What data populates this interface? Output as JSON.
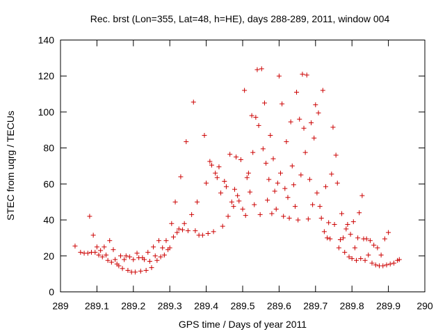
{
  "chart_data": {
    "type": "scatter",
    "title": "Rec. brst (Lon=355, Lat=48, h=HE), days 288-289, 2011, window 004",
    "xlabel": "GPS time / Days of year 2011",
    "ylabel": "STEC from uqrg / TECUs",
    "xlim": [
      289,
      290
    ],
    "ylim": [
      0,
      140
    ],
    "xticks": [
      "289",
      "289.1",
      "289.2",
      "289.3",
      "289.4",
      "289.5",
      "289.6",
      "289.7",
      "289.8",
      "289.9",
      "290"
    ],
    "yticks": [
      "0",
      "20",
      "40",
      "60",
      "80",
      "100",
      "120",
      "140"
    ],
    "marker": "plus",
    "color": "#cc0000",
    "grid": false,
    "legend": "none",
    "points": [
      [
        289.04,
        25.5
      ],
      [
        289.055,
        22.0
      ],
      [
        289.065,
        21.5
      ],
      [
        289.075,
        21.5
      ],
      [
        289.08,
        42.0
      ],
      [
        289.085,
        22.0
      ],
      [
        289.09,
        31.5
      ],
      [
        289.095,
        22.0
      ],
      [
        289.1,
        25.0
      ],
      [
        289.105,
        20.5
      ],
      [
        289.11,
        23.0
      ],
      [
        289.115,
        19.5
      ],
      [
        289.12,
        25.0
      ],
      [
        289.125,
        20.5
      ],
      [
        289.13,
        17.5
      ],
      [
        289.135,
        28.5
      ],
      [
        289.14,
        16.5
      ],
      [
        289.145,
        23.5
      ],
      [
        289.15,
        18.0
      ],
      [
        289.155,
        15.5
      ],
      [
        289.16,
        14.5
      ],
      [
        289.165,
        20.0
      ],
      [
        289.17,
        13.0
      ],
      [
        289.175,
        18.0
      ],
      [
        289.18,
        20.0
      ],
      [
        289.185,
        12.0
      ],
      [
        289.19,
        19.5
      ],
      [
        289.195,
        11.0
      ],
      [
        289.2,
        18.0
      ],
      [
        289.205,
        11.0
      ],
      [
        289.21,
        21.5
      ],
      [
        289.215,
        19.0
      ],
      [
        289.22,
        11.5
      ],
      [
        289.225,
        19.0
      ],
      [
        289.23,
        18.0
      ],
      [
        289.235,
        12.0
      ],
      [
        289.24,
        22.0
      ],
      [
        289.245,
        17.0
      ],
      [
        289.25,
        13.5
      ],
      [
        289.255,
        25.0
      ],
      [
        289.26,
        20.0
      ],
      [
        289.265,
        17.5
      ],
      [
        289.27,
        28.5
      ],
      [
        289.275,
        19.5
      ],
      [
        289.28,
        24.5
      ],
      [
        289.285,
        20.5
      ],
      [
        289.29,
        28.5
      ],
      [
        289.295,
        23.5
      ],
      [
        289.3,
        24.5
      ],
      [
        289.305,
        38.0
      ],
      [
        289.31,
        30.5
      ],
      [
        289.315,
        50.0
      ],
      [
        289.32,
        33.0
      ],
      [
        289.325,
        35.0
      ],
      [
        289.33,
        64.0
      ],
      [
        289.335,
        34.5
      ],
      [
        289.34,
        38.0
      ],
      [
        289.345,
        83.5
      ],
      [
        289.35,
        34.0
      ],
      [
        289.36,
        43.0
      ],
      [
        289.365,
        105.5
      ],
      [
        289.37,
        34.0
      ],
      [
        289.375,
        50.0
      ],
      [
        289.38,
        31.5
      ],
      [
        289.39,
        31.5
      ],
      [
        289.395,
        87.0
      ],
      [
        289.4,
        60.5
      ],
      [
        289.405,
        32.5
      ],
      [
        289.41,
        72.5
      ],
      [
        289.415,
        70.5
      ],
      [
        289.42,
        33.5
      ],
      [
        289.425,
        66.0
      ],
      [
        289.43,
        63.5
      ],
      [
        289.435,
        69.5
      ],
      [
        289.44,
        55.0
      ],
      [
        289.445,
        36.5
      ],
      [
        289.45,
        61.5
      ],
      [
        289.455,
        58.5
      ],
      [
        289.46,
        42.0
      ],
      [
        289.465,
        76.5
      ],
      [
        289.47,
        50.0
      ],
      [
        289.475,
        47.5
      ],
      [
        289.478,
        57.0
      ],
      [
        289.482,
        75.0
      ],
      [
        289.486,
        53.5
      ],
      [
        289.49,
        50.5
      ],
      [
        289.495,
        73.5
      ],
      [
        289.5,
        46.0
      ],
      [
        289.505,
        112.0
      ],
      [
        289.508,
        42.5
      ],
      [
        289.512,
        63.5
      ],
      [
        289.516,
        66.0
      ],
      [
        289.52,
        55.5
      ],
      [
        289.525,
        98.0
      ],
      [
        289.528,
        77.5
      ],
      [
        289.532,
        48.5
      ],
      [
        289.536,
        97.0
      ],
      [
        289.54,
        123.5
      ],
      [
        289.544,
        92.5
      ],
      [
        289.548,
        43.0
      ],
      [
        289.552,
        124.0
      ],
      [
        289.556,
        79.5
      ],
      [
        289.56,
        105.0
      ],
      [
        289.564,
        71.5
      ],
      [
        289.568,
        51.0
      ],
      [
        289.572,
        62.5
      ],
      [
        289.576,
        87.0
      ],
      [
        289.58,
        43.5
      ],
      [
        289.584,
        74.0
      ],
      [
        289.588,
        56.0
      ],
      [
        289.592,
        46.0
      ],
      [
        289.596,
        60.5
      ],
      [
        289.6,
        120.0
      ],
      [
        289.604,
        66.0
      ],
      [
        289.608,
        104.5
      ],
      [
        289.612,
        42.0
      ],
      [
        289.616,
        57.5
      ],
      [
        289.62,
        83.5
      ],
      [
        289.624,
        52.5
      ],
      [
        289.628,
        41.0
      ],
      [
        289.632,
        94.5
      ],
      [
        289.636,
        70.0
      ],
      [
        289.64,
        59.5
      ],
      [
        289.644,
        47.5
      ],
      [
        289.648,
        111.0
      ],
      [
        289.652,
        40.0
      ],
      [
        289.656,
        96.0
      ],
      [
        289.66,
        65.0
      ],
      [
        289.664,
        121.0
      ],
      [
        289.668,
        91.0
      ],
      [
        289.672,
        77.5
      ],
      [
        289.676,
        120.5
      ],
      [
        289.68,
        40.5
      ],
      [
        289.684,
        62.5
      ],
      [
        289.688,
        94.0
      ],
      [
        289.692,
        48.5
      ],
      [
        289.696,
        85.5
      ],
      [
        289.7,
        104.0
      ],
      [
        289.704,
        55.0
      ],
      [
        289.708,
        99.5
      ],
      [
        289.712,
        47.5
      ],
      [
        289.716,
        41.0
      ],
      [
        289.72,
        112.0
      ],
      [
        289.724,
        33.5
      ],
      [
        289.728,
        58.5
      ],
      [
        289.732,
        30.0
      ],
      [
        289.736,
        38.5
      ],
      [
        289.74,
        29.5
      ],
      [
        289.744,
        65.5
      ],
      [
        289.748,
        91.5
      ],
      [
        289.752,
        37.5
      ],
      [
        289.756,
        76.0
      ],
      [
        289.76,
        60.5
      ],
      [
        289.764,
        24.5
      ],
      [
        289.768,
        29.0
      ],
      [
        289.772,
        43.5
      ],
      [
        289.776,
        30.0
      ],
      [
        289.78,
        22.0
      ],
      [
        289.784,
        35.0
      ],
      [
        289.788,
        37.5
      ],
      [
        289.792,
        19.5
      ],
      [
        289.796,
        32.0
      ],
      [
        289.8,
        18.5
      ],
      [
        289.804,
        39.0
      ],
      [
        289.808,
        24.5
      ],
      [
        289.812,
        17.5
      ],
      [
        289.816,
        30.0
      ],
      [
        289.82,
        44.0
      ],
      [
        289.824,
        18.5
      ],
      [
        289.828,
        53.5
      ],
      [
        289.832,
        29.5
      ],
      [
        289.836,
        17.5
      ],
      [
        289.84,
        29.5
      ],
      [
        289.845,
        20.5
      ],
      [
        289.85,
        28.5
      ],
      [
        289.855,
        16.0
      ],
      [
        289.86,
        26.0
      ],
      [
        289.865,
        15.0
      ],
      [
        289.87,
        24.5
      ],
      [
        289.875,
        14.5
      ],
      [
        289.88,
        20.5
      ],
      [
        289.885,
        14.5
      ],
      [
        289.89,
        29.5
      ],
      [
        289.895,
        15.0
      ],
      [
        289.9,
        33.0
      ],
      [
        289.905,
        15.5
      ],
      [
        289.915,
        16.0
      ],
      [
        289.925,
        17.5
      ],
      [
        289.93,
        18.0
      ]
    ]
  }
}
